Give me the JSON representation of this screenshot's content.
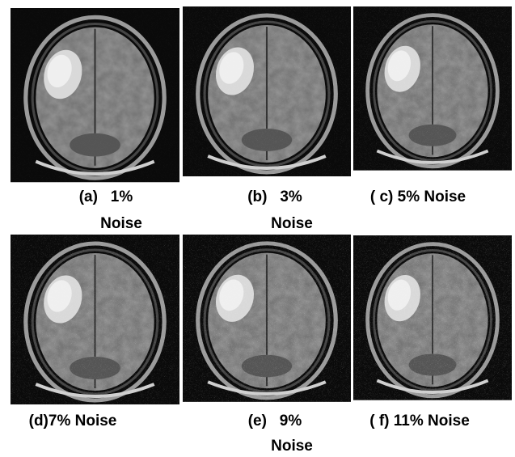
{
  "panels": [
    {
      "caption": [
        "(a)   1%",
        "Noise"
      ]
    },
    {
      "caption": [
        "(b)   3%",
        "Noise"
      ]
    },
    {
      "caption": [
        "( c) 5% Noise"
      ]
    },
    {
      "caption": [
        "(d)7% Noise"
      ]
    },
    {
      "caption": [
        "(e)   9%",
        "Noise"
      ]
    },
    {
      "caption": [
        "( f) 11% Noise"
      ]
    }
  ]
}
